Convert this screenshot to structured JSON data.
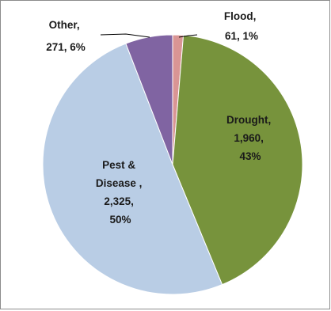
{
  "chart_data": {
    "type": "pie",
    "categories": [
      "Flood",
      "Drought",
      "Pest & Disease",
      "Other"
    ],
    "values": [
      61,
      1960,
      2325,
      271
    ],
    "percent_labels": [
      "1%",
      "43%",
      "50%",
      "6%"
    ],
    "value_labels": [
      "61",
      "1,960",
      "2,325",
      "271"
    ],
    "colors": [
      "#d99594",
      "#77933c",
      "#b9cde5",
      "#8064a2"
    ],
    "slice_border": "#ffffff",
    "start_angle_deg": 0,
    "direction": "clockwise",
    "labels": {
      "flood": [
        "Flood,",
        "61, 1%"
      ],
      "drought": [
        "Drought,",
        "1,960,",
        "43%"
      ],
      "pest": [
        "Pest &",
        "Disease ,",
        "2,325,",
        "50%"
      ],
      "other": [
        "Other,",
        "271, 6%"
      ]
    },
    "legend": "none"
  }
}
